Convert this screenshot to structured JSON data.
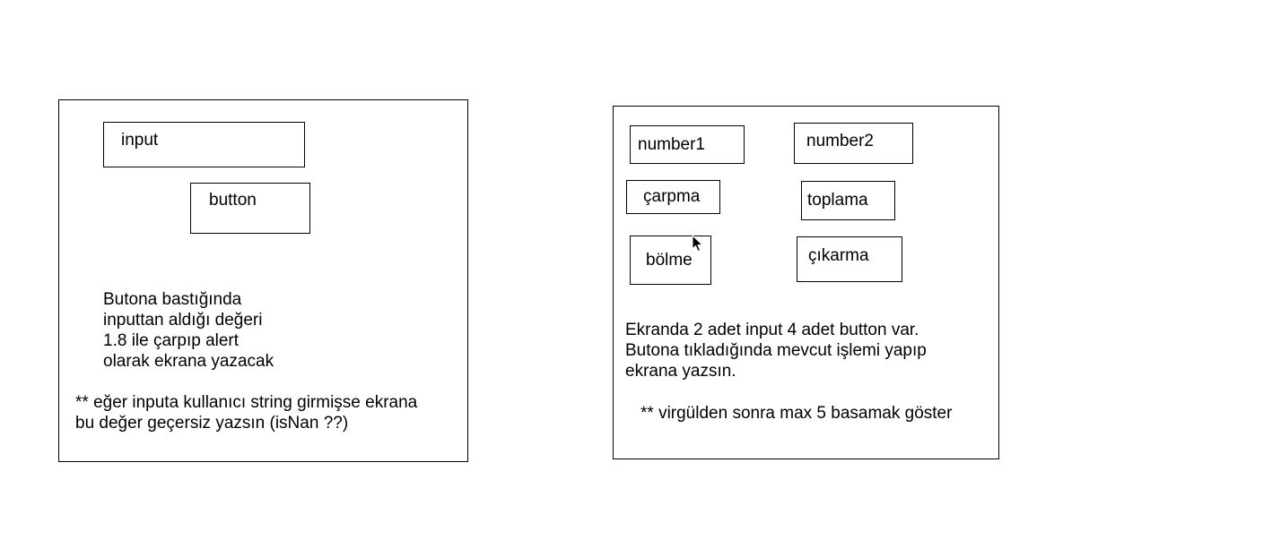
{
  "left_panel": {
    "input_label": "input",
    "button_label": "button",
    "description_lines": [
      "Butona bastığında",
      "inputtan aldığı değeri",
      "1.8 ile çarpıp alert",
      "olarak ekrana yazacak"
    ],
    "note_lines": [
      "**  eğer inputa kullanıcı string girmişse ekrana",
      "bu değer geçersiz yazsın (isNan ??)"
    ]
  },
  "right_panel": {
    "number1_label": "number1",
    "number2_label": "number2",
    "multiply_label": "çarpma",
    "add_label": "toplama",
    "divide_label": "bölme",
    "subtract_label": "çıkarma",
    "description_lines": [
      "Ekranda 2 adet input 4 adet button var.",
      "Butona tıkladığında mevcut işlemi yapıp",
      "ekrana yazsın."
    ],
    "note": "** virgülden sonra max 5 basamak göster"
  },
  "icons": {
    "cursor": "mouse-pointer-icon"
  }
}
